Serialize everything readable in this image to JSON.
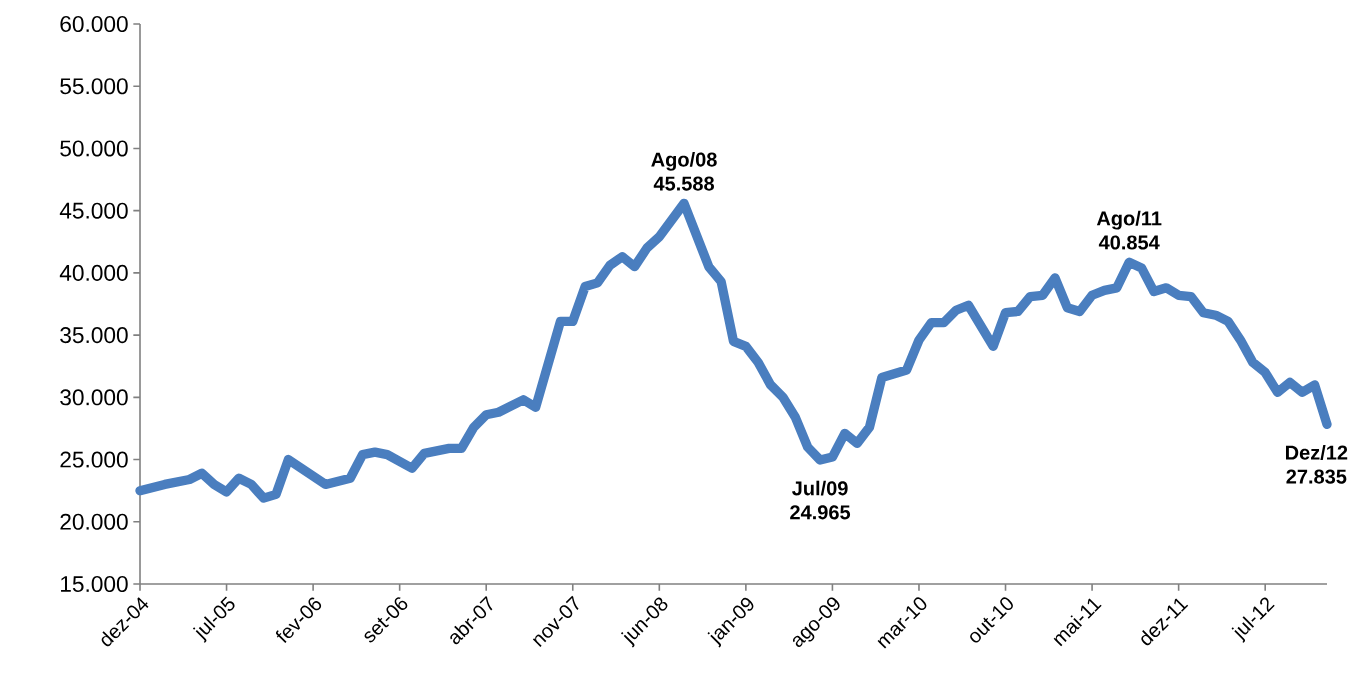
{
  "chart_data": {
    "type": "line",
    "color": "#4a7ebf",
    "line_style": "solid",
    "marker": "none",
    "grid": false,
    "x": [
      "2004-12",
      "2005-02",
      "2005-04",
      "2005-05",
      "2005-06",
      "2005-07",
      "2005-08",
      "2005-09",
      "2005-10",
      "2005-11",
      "2005-12",
      "2006-03",
      "2006-05",
      "2006-06",
      "2006-07",
      "2006-08",
      "2006-10",
      "2006-11",
      "2007-01",
      "2007-02",
      "2007-03",
      "2007-04",
      "2007-05",
      "2007-07",
      "2007-08",
      "2007-10",
      "2007-11",
      "2007-12",
      "2008-01",
      "2008-02",
      "2008-03",
      "2008-04",
      "2008-05",
      "2008-06",
      "2008-08",
      "2008-10",
      "2008-11",
      "2008-12",
      "2009-01",
      "2009-02",
      "2009-03",
      "2009-04",
      "2009-05",
      "2009-06",
      "2009-07",
      "2009-08",
      "2009-09",
      "2009-10",
      "2009-11",
      "2009-12",
      "2010-02",
      "2010-03",
      "2010-04",
      "2010-05",
      "2010-06",
      "2010-07",
      "2010-09",
      "2010-10",
      "2010-11",
      "2010-12",
      "2011-01",
      "2011-02",
      "2011-03",
      "2011-04",
      "2011-05",
      "2011-06",
      "2011-07",
      "2011-08",
      "2011-09",
      "2011-10",
      "2011-11",
      "2011-12",
      "2012-01",
      "2012-02",
      "2012-03",
      "2012-04",
      "2012-05",
      "2012-06",
      "2012-07",
      "2012-08",
      "2012-09",
      "2012-10",
      "2012-11",
      "2012-12"
    ],
    "values": [
      22500,
      23000,
      23400,
      23900,
      23000,
      22400,
      23500,
      23000,
      21900,
      22200,
      25000,
      23000,
      23500,
      25400,
      25600,
      25400,
      24300,
      25500,
      25900,
      25900,
      27600,
      28600,
      28800,
      29800,
      29200,
      36100,
      36100,
      38900,
      39200,
      40600,
      41300,
      40500,
      42000,
      42900,
      45588,
      40500,
      39300,
      34500,
      34100,
      32800,
      31000,
      30000,
      28400,
      26000,
      24965,
      25200,
      27100,
      26300,
      27600,
      31600,
      32200,
      34600,
      36000,
      36000,
      37000,
      37400,
      34100,
      36800,
      36900,
      38100,
      38200,
      39600,
      37200,
      36900,
      38200,
      38600,
      38800,
      40854,
      40400,
      38500,
      38800,
      38200,
      38100,
      36800,
      36600,
      36100,
      34600,
      32800,
      32000,
      30400,
      31200,
      30400,
      31000,
      27835
    ],
    "xlim": [
      "2004-12",
      "2012-12"
    ],
    "xticks": [
      {
        "value": "2004-12",
        "label": "dez-04"
      },
      {
        "value": "2005-07",
        "label": "jul-05"
      },
      {
        "value": "2006-02",
        "label": "fev-06"
      },
      {
        "value": "2006-09",
        "label": "set-06"
      },
      {
        "value": "2007-04",
        "label": "abr-07"
      },
      {
        "value": "2007-11",
        "label": "nov-07"
      },
      {
        "value": "2008-06",
        "label": "jun-08"
      },
      {
        "value": "2009-01",
        "label": "jan-09"
      },
      {
        "value": "2009-08",
        "label": "ago-09"
      },
      {
        "value": "2010-03",
        "label": "mar-10"
      },
      {
        "value": "2010-10",
        "label": "out-10"
      },
      {
        "value": "2011-05",
        "label": "mai-11"
      },
      {
        "value": "2011-12",
        "label": "dez-11"
      },
      {
        "value": "2012-07",
        "label": "jul-12"
      }
    ],
    "ylim": [
      15000,
      60000
    ],
    "yticks": [
      {
        "value": 15000,
        "label": "15.000"
      },
      {
        "value": 20000,
        "label": "20.000"
      },
      {
        "value": 25000,
        "label": "25.000"
      },
      {
        "value": 30000,
        "label": "30.000"
      },
      {
        "value": 35000,
        "label": "35.000"
      },
      {
        "value": 40000,
        "label": "40.000"
      },
      {
        "value": 45000,
        "label": "45.000"
      },
      {
        "value": 50000,
        "label": "50.000"
      },
      {
        "value": 55000,
        "label": "55.000"
      },
      {
        "value": 60000,
        "label": "60.000"
      }
    ],
    "annotations": [
      {
        "text": "Ago/08",
        "x": "2008-08",
        "y": 45588
      },
      {
        "text": "45.588",
        "x": "2008-08",
        "y": 45588
      },
      {
        "text": "Jul/09",
        "x": "2009-07",
        "y": 24965
      },
      {
        "text": "24.965",
        "x": "2009-07",
        "y": 24965
      },
      {
        "text": "Ago/11",
        "x": "2011-08",
        "y": 40854
      },
      {
        "text": "40.854",
        "x": "2011-08",
        "y": 40854
      },
      {
        "text": "Dez/12",
        "x": "2012-12",
        "y": 27835
      },
      {
        "text": "27.835",
        "x": "2012-12",
        "y": 27835
      }
    ]
  }
}
